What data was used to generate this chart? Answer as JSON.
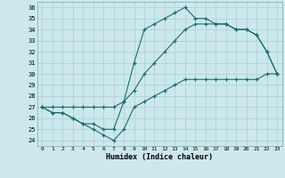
{
  "xlabel": "Humidex (Indice chaleur)",
  "bg_color": "#cce8ec",
  "line_color": "#1a6e65",
  "grid_color": "#aacdd4",
  "xlim": [
    -0.5,
    23.5
  ],
  "ylim": [
    23.5,
    36.5
  ],
  "xticks": [
    0,
    1,
    2,
    3,
    4,
    5,
    6,
    7,
    8,
    9,
    10,
    11,
    12,
    13,
    14,
    15,
    16,
    17,
    18,
    19,
    20,
    21,
    22,
    23
  ],
  "yticks": [
    24,
    25,
    26,
    27,
    28,
    29,
    30,
    31,
    32,
    33,
    34,
    35,
    36
  ],
  "line1_x": [
    0,
    1,
    2,
    3,
    4,
    5,
    6,
    7,
    8,
    9,
    10,
    11,
    12,
    13,
    14,
    15,
    16,
    17,
    18,
    19,
    20,
    21,
    22,
    23
  ],
  "line1_y": [
    27,
    26.5,
    26.5,
    26,
    25.5,
    25,
    24.5,
    24,
    25,
    27,
    27.5,
    28,
    28.5,
    29,
    29.5,
    29.5,
    29.5,
    29.5,
    29.5,
    29.5,
    29.5,
    29.5,
    30,
    30
  ],
  "line2_x": [
    0,
    1,
    2,
    3,
    4,
    5,
    6,
    7,
    8,
    9,
    10,
    11,
    12,
    13,
    14,
    15,
    16,
    17,
    18,
    19,
    20,
    21,
    22,
    23
  ],
  "line2_y": [
    27,
    27,
    27,
    27,
    27,
    27,
    27,
    27,
    27.5,
    28.5,
    30,
    31,
    32,
    33,
    34,
    34.5,
    34.5,
    34.5,
    34.5,
    34,
    34,
    33.5,
    32,
    30
  ],
  "line3_x": [
    0,
    1,
    2,
    3,
    4,
    5,
    6,
    7,
    8,
    9,
    10,
    11,
    12,
    13,
    14,
    15,
    16,
    17,
    18,
    19,
    20,
    21,
    22,
    23
  ],
  "line3_y": [
    27,
    26.5,
    26.5,
    26,
    25.5,
    25.5,
    25,
    25,
    27.5,
    31,
    34,
    34.5,
    35,
    35.5,
    36,
    35,
    35,
    34.5,
    34.5,
    34,
    34,
    33.5,
    32,
    30
  ]
}
